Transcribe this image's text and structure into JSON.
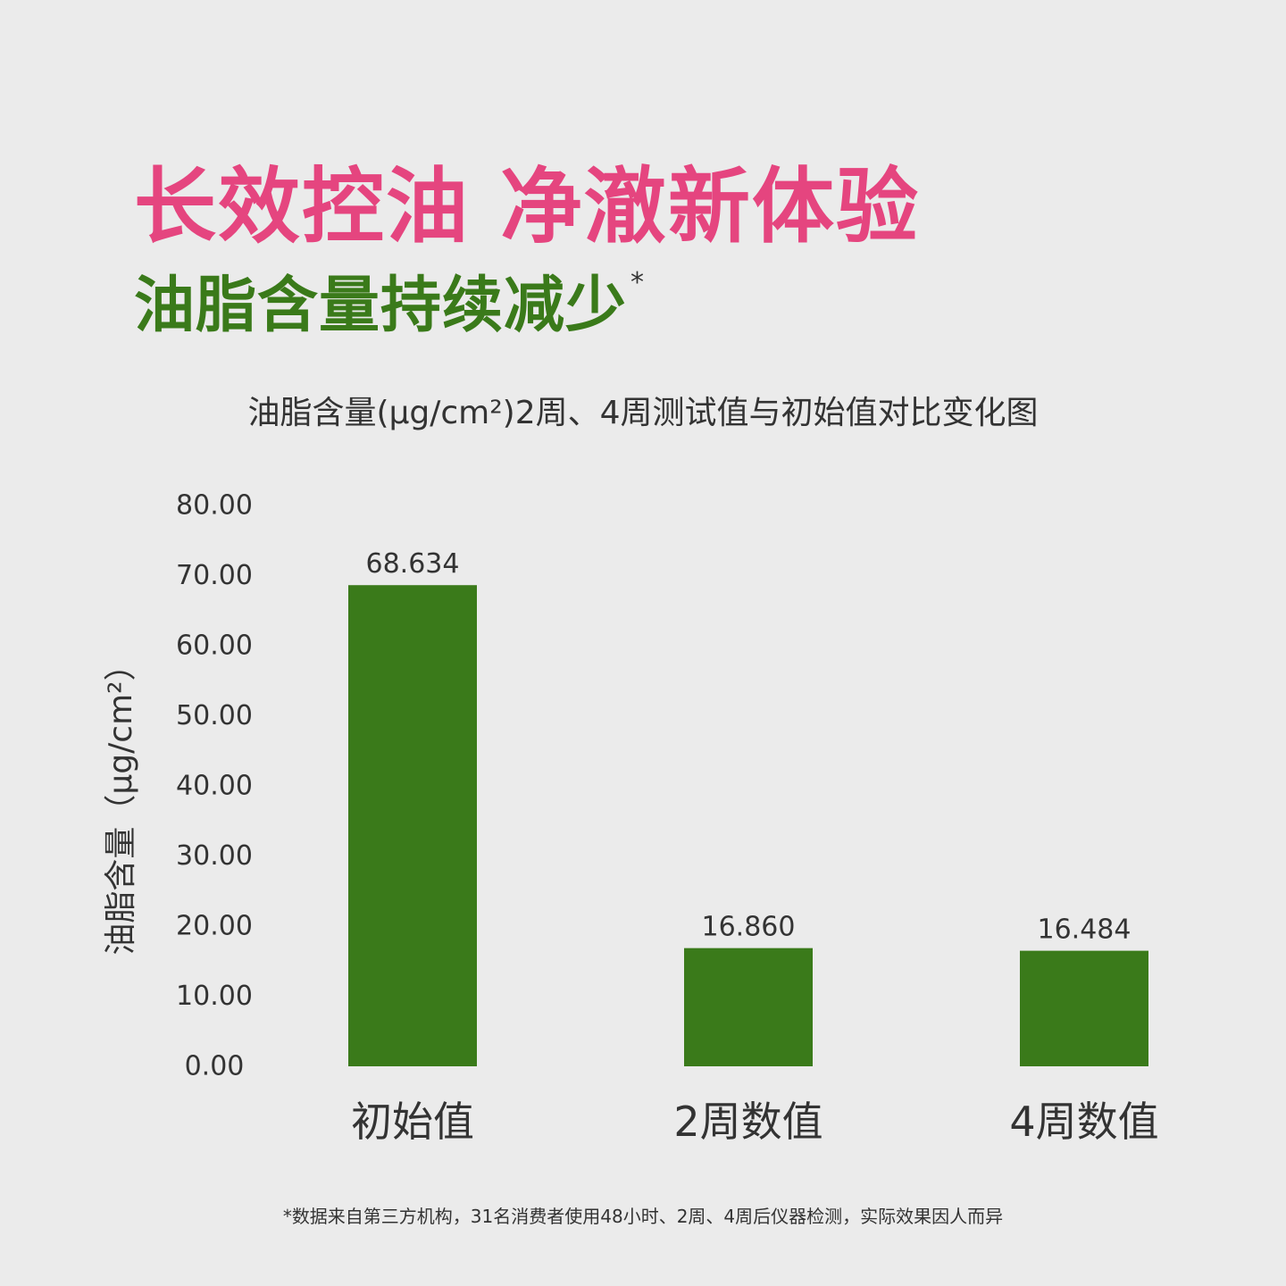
{
  "headline": {
    "text": "长效控油 净澈新体验",
    "color": "#e5457f"
  },
  "subheadline": {
    "text": "油脂含量持续减少",
    "marker": "*",
    "color": "#3a7a1a"
  },
  "chart_data": {
    "type": "bar",
    "title": "油脂含量(μg/cm²)2周、4周测试值与初始值对比变化图",
    "ylabel": "油脂含量（μg/cm²）",
    "xlabel": "",
    "categories": [
      "初始值",
      "2周数值",
      "4周数值"
    ],
    "values": [
      68.634,
      16.86,
      16.484
    ],
    "value_labels": [
      "68.634",
      "16.860",
      "16.484"
    ],
    "ylim": [
      0,
      80
    ],
    "yticks": [
      0,
      10,
      20,
      30,
      40,
      50,
      60,
      70,
      80
    ],
    "ytick_labels": [
      "0.00",
      "10.00",
      "20.00",
      "30.00",
      "40.00",
      "50.00",
      "60.00",
      "70.00",
      "80.00"
    ],
    "bar_color": "#3a7a1a",
    "grid": false,
    "legend": "none"
  },
  "footnote": "*数据来自第三方机构，31名消费者使用48小时、2周、4周后仪器检测，实际效果因人而异"
}
